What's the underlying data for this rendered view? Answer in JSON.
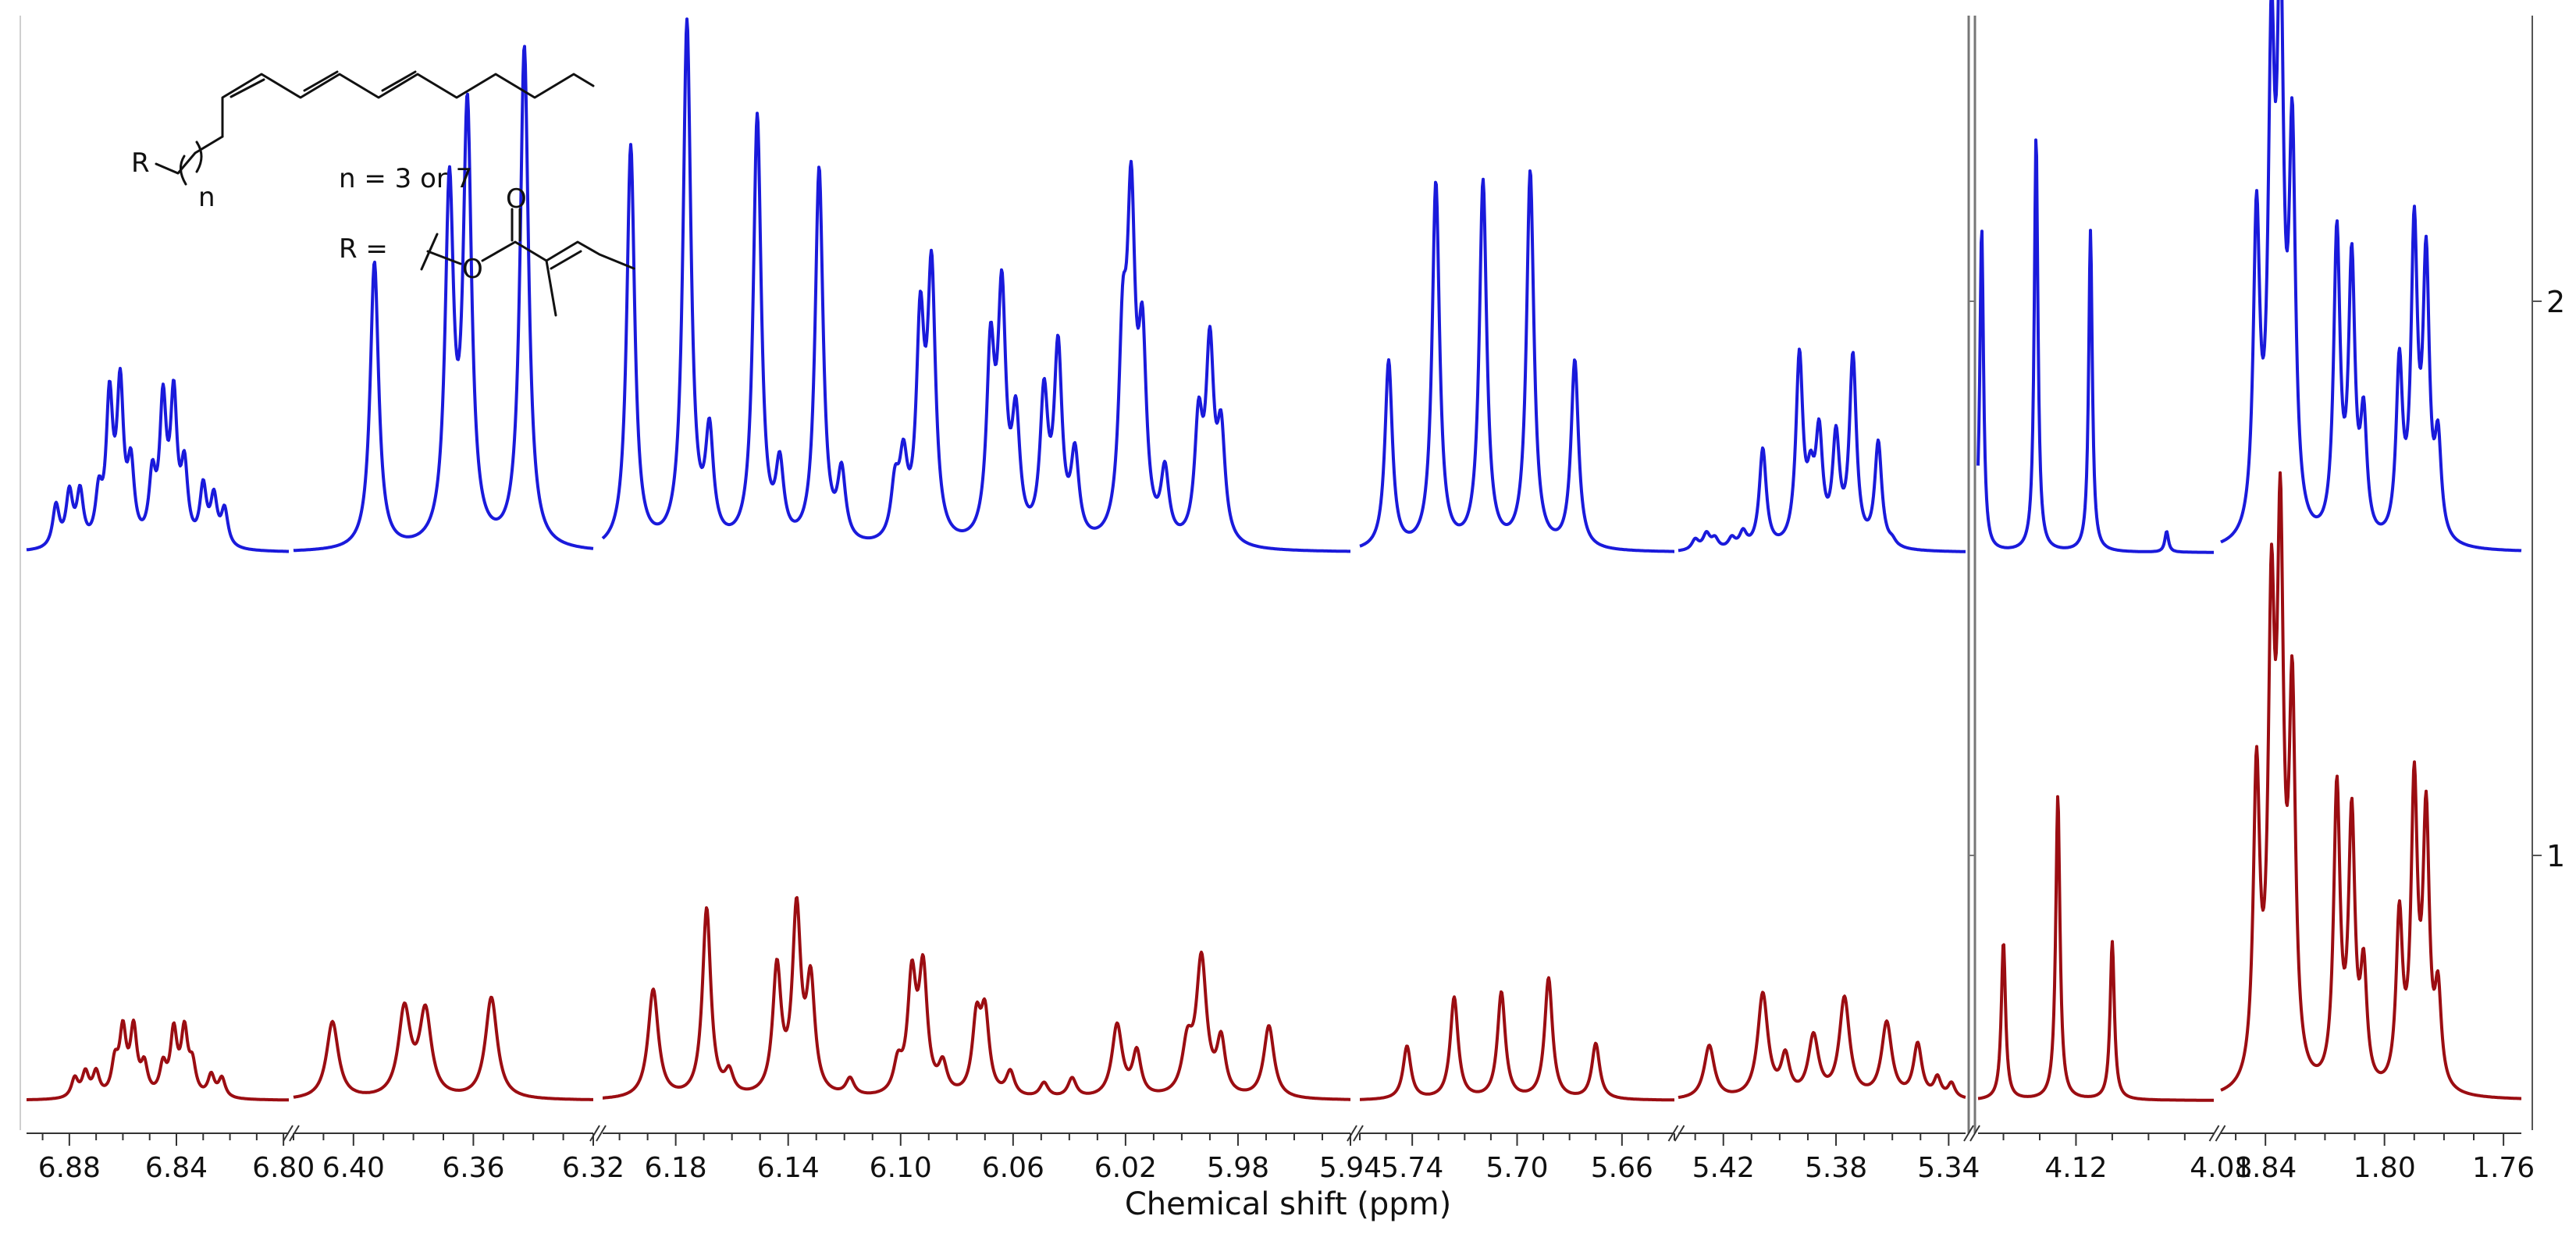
{
  "chart_data": {
    "type": "line",
    "title": "",
    "xlabel": "Chemical shift (ppm)",
    "ylabel": "",
    "x_reversed": true,
    "grid": false,
    "legend": "none",
    "segments": [
      {
        "xlim": [
          6.896,
          6.798
        ],
        "ticks": [
          "6.88",
          "6.84",
          "6.80"
        ]
      },
      {
        "xlim": [
          6.42,
          6.32
        ],
        "ticks": [
          "6.40",
          "6.36",
          "6.32"
        ]
      },
      {
        "xlim": [
          6.206,
          5.94
        ],
        "ticks": [
          "6.18",
          "6.14",
          "6.10",
          "6.06",
          "6.02",
          "5.98",
          "5.94"
        ]
      },
      {
        "xlim": [
          5.76,
          5.64
        ],
        "ticks": [
          "5.74",
          "5.70",
          "5.66"
        ]
      },
      {
        "xlim": [
          5.436,
          5.334
        ],
        "ticks": [
          "5.42",
          "5.38",
          "5.34"
        ]
      },
      {
        "xlim": [
          4.147,
          4.082
        ],
        "ticks": [
          "4.12",
          "4.08"
        ]
      },
      {
        "xlim": [
          1.855,
          1.754
        ],
        "ticks": [
          "1.84",
          "1.80",
          "1.76"
        ]
      }
    ],
    "series": [
      {
        "name": "2",
        "color": "#1a1adb",
        "peaks": [
          [
            6.885,
            0.08,
            0.0015
          ],
          [
            6.88,
            0.1,
            0.0015
          ],
          [
            6.876,
            0.1,
            0.0015
          ],
          [
            6.869,
            0.09,
            0.0015
          ],
          [
            6.865,
            0.27,
            0.0015
          ],
          [
            6.861,
            0.29,
            0.0015
          ],
          [
            6.857,
            0.14,
            0.0015
          ],
          [
            6.849,
            0.12,
            0.0015
          ],
          [
            6.845,
            0.26,
            0.0015
          ],
          [
            6.841,
            0.27,
            0.0015
          ],
          [
            6.837,
            0.14,
            0.0015
          ],
          [
            6.83,
            0.11,
            0.0015
          ],
          [
            6.826,
            0.09,
            0.0015
          ],
          [
            6.822,
            0.07,
            0.0015
          ],
          [
            6.393,
            0.55,
            0.0017
          ],
          [
            6.368,
            0.67,
            0.0017
          ],
          [
            6.362,
            0.82,
            0.0017
          ],
          [
            6.343,
            0.96,
            0.0017
          ],
          [
            6.196,
            0.77,
            0.0017
          ],
          [
            6.176,
            1.0,
            0.0017
          ],
          [
            6.168,
            0.2,
            0.0017
          ],
          [
            6.151,
            0.82,
            0.0017
          ],
          [
            6.143,
            0.14,
            0.0017
          ],
          [
            6.129,
            0.72,
            0.0017
          ],
          [
            6.121,
            0.13,
            0.0017
          ],
          [
            6.102,
            0.1,
            0.0017
          ],
          [
            6.099,
            0.14,
            0.0017
          ],
          [
            6.093,
            0.4,
            0.0017
          ],
          [
            6.089,
            0.5,
            0.0017
          ],
          [
            6.068,
            0.35,
            0.0017
          ],
          [
            6.064,
            0.45,
            0.0017
          ],
          [
            6.059,
            0.22,
            0.0017
          ],
          [
            6.049,
            0.27,
            0.0017
          ],
          [
            6.044,
            0.36,
            0.0017
          ],
          [
            6.038,
            0.16,
            0.0017
          ],
          [
            6.021,
            0.34,
            0.0017
          ],
          [
            6.018,
            0.6,
            0.0017
          ],
          [
            6.014,
            0.35,
            0.0017
          ],
          [
            6.006,
            0.13,
            0.0017
          ],
          [
            5.994,
            0.22,
            0.0017
          ],
          [
            5.99,
            0.36,
            0.0017
          ],
          [
            5.986,
            0.2,
            0.0017
          ],
          [
            5.749,
            0.36,
            0.0017
          ],
          [
            5.731,
            0.7,
            0.0017
          ],
          [
            5.713,
            0.7,
            0.0017
          ],
          [
            5.695,
            0.72,
            0.0017
          ],
          [
            5.678,
            0.36,
            0.0017
          ],
          [
            5.43,
            0.02,
            0.0015
          ],
          [
            5.426,
            0.03,
            0.0015
          ],
          [
            5.423,
            0.02,
            0.0015
          ],
          [
            5.417,
            0.02,
            0.0015
          ],
          [
            5.413,
            0.03,
            0.0015
          ],
          [
            5.406,
            0.19,
            0.0015
          ],
          [
            5.393,
            0.36,
            0.0015
          ],
          [
            5.389,
            0.1,
            0.0015
          ],
          [
            5.386,
            0.2,
            0.0015
          ],
          [
            5.38,
            0.2,
            0.0015
          ],
          [
            5.374,
            0.36,
            0.0015
          ],
          [
            5.365,
            0.2,
            0.0015
          ],
          [
            5.36,
            0.01,
            0.0015
          ],
          [
            4.146,
            0.78,
            0.0006
          ],
          [
            4.131,
            1.0,
            0.0006
          ],
          [
            4.116,
            0.77,
            0.0006
          ],
          [
            4.095,
            0.05,
            0.0006
          ],
          [
            1.843,
            0.6,
            0.0013
          ],
          [
            1.838,
            0.86,
            0.0013
          ],
          [
            1.835,
            1.0,
            0.0013
          ],
          [
            1.831,
            0.73,
            0.0013
          ],
          [
            1.816,
            0.58,
            0.0013
          ],
          [
            1.811,
            0.52,
            0.0013
          ],
          [
            1.807,
            0.22,
            0.0013
          ],
          [
            1.795,
            0.33,
            0.0013
          ],
          [
            1.79,
            0.58,
            0.0013
          ],
          [
            1.786,
            0.52,
            0.0013
          ],
          [
            1.782,
            0.18,
            0.0013
          ]
        ]
      },
      {
        "name": "1",
        "color": "#9b0d12",
        "peaks": [
          [
            6.878,
            0.08,
            0.0015
          ],
          [
            6.874,
            0.1,
            0.0015
          ],
          [
            6.87,
            0.1,
            0.0015
          ],
          [
            6.863,
            0.13,
            0.0015
          ],
          [
            6.86,
            0.26,
            0.0015
          ],
          [
            6.856,
            0.27,
            0.0015
          ],
          [
            6.852,
            0.12,
            0.0015
          ],
          [
            6.845,
            0.12,
            0.0015
          ],
          [
            6.841,
            0.26,
            0.0015
          ],
          [
            6.837,
            0.26,
            0.0015
          ],
          [
            6.834,
            0.12,
            0.0015
          ],
          [
            6.827,
            0.09,
            0.0015
          ],
          [
            6.823,
            0.08,
            0.0015
          ],
          [
            6.407,
            0.32,
            0.0024
          ],
          [
            6.383,
            0.36,
            0.0024
          ],
          [
            6.376,
            0.35,
            0.0024
          ],
          [
            6.354,
            0.42,
            0.0024
          ],
          [
            6.188,
            0.45,
            0.0022
          ],
          [
            6.169,
            0.78,
            0.0018
          ],
          [
            6.161,
            0.09,
            0.0018
          ],
          [
            6.144,
            0.52,
            0.0018
          ],
          [
            6.137,
            0.75,
            0.0018
          ],
          [
            6.132,
            0.45,
            0.0018
          ],
          [
            6.118,
            0.07,
            0.0018
          ],
          [
            6.101,
            0.12,
            0.0018
          ],
          [
            6.096,
            0.47,
            0.0018
          ],
          [
            6.092,
            0.5,
            0.0018
          ],
          [
            6.085,
            0.12,
            0.0018
          ],
          [
            6.073,
            0.3,
            0.0018
          ],
          [
            6.07,
            0.32,
            0.0018
          ],
          [
            6.061,
            0.1,
            0.0018
          ],
          [
            6.049,
            0.06,
            0.0018
          ],
          [
            6.039,
            0.08,
            0.0018
          ],
          [
            6.023,
            0.3,
            0.0022
          ],
          [
            6.016,
            0.18,
            0.0018
          ],
          [
            5.998,
            0.2,
            0.0022
          ],
          [
            5.993,
            0.56,
            0.0022
          ],
          [
            5.986,
            0.22,
            0.0018
          ],
          [
            5.969,
            0.3,
            0.0022
          ],
          [
            5.742,
            0.22,
            0.0018
          ],
          [
            5.724,
            0.42,
            0.0018
          ],
          [
            5.706,
            0.44,
            0.0018
          ],
          [
            5.688,
            0.5,
            0.0018
          ],
          [
            5.67,
            0.23,
            0.0018
          ],
          [
            5.425,
            0.22,
            0.0022
          ],
          [
            5.406,
            0.43,
            0.0022
          ],
          [
            5.398,
            0.16,
            0.0018
          ],
          [
            5.388,
            0.25,
            0.0022
          ],
          [
            5.377,
            0.41,
            0.0022
          ],
          [
            5.362,
            0.31,
            0.0022
          ],
          [
            5.351,
            0.22,
            0.0018
          ],
          [
            5.344,
            0.08,
            0.0015
          ],
          [
            5.339,
            0.06,
            0.0015
          ],
          [
            4.14,
            0.52,
            0.0007
          ],
          [
            4.125,
            1.0,
            0.0007
          ],
          [
            4.11,
            0.52,
            0.0007
          ],
          [
            1.843,
            0.6,
            0.0013
          ],
          [
            1.838,
            0.86,
            0.0013
          ],
          [
            1.835,
            1.0,
            0.0013
          ],
          [
            1.831,
            0.73,
            0.0013
          ],
          [
            1.816,
            0.58,
            0.0013
          ],
          [
            1.811,
            0.52,
            0.0013
          ],
          [
            1.807,
            0.22,
            0.0013
          ],
          [
            1.795,
            0.33,
            0.0013
          ],
          [
            1.79,
            0.58,
            0.0013
          ],
          [
            1.786,
            0.52,
            0.0013
          ],
          [
            1.782,
            0.18,
            0.0013
          ]
        ]
      }
    ],
    "annotations": [
      "R",
      "n",
      "n = 3 or 7",
      "R =",
      "O",
      "O"
    ]
  }
}
